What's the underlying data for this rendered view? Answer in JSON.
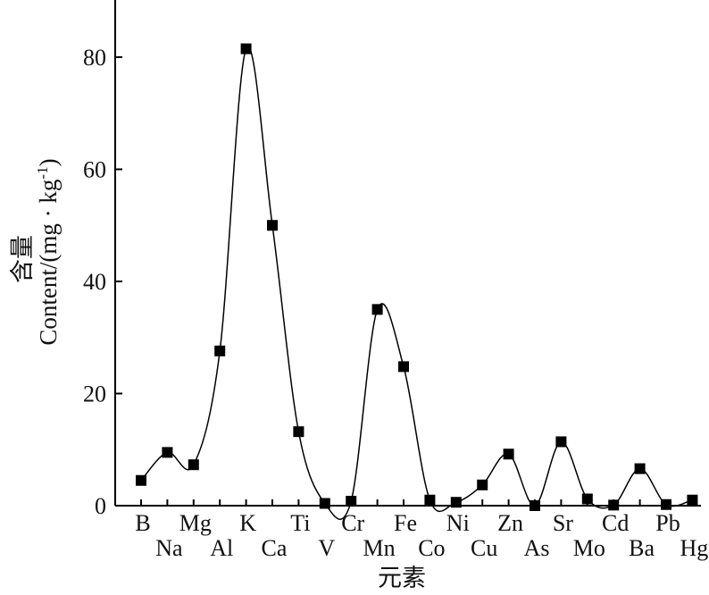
{
  "chart_data": {
    "type": "line",
    "categories": [
      "B",
      "Na",
      "Mg",
      "Al",
      "K",
      "Ca",
      "Ti",
      "V",
      "Cr",
      "Mn",
      "Fe",
      "Co",
      "Ni",
      "Cu",
      "Zn",
      "As",
      "Sr",
      "Mo",
      "Cd",
      "Ba",
      "Pb",
      "Hg"
    ],
    "values": [
      4.5,
      9.5,
      7.3,
      27.6,
      81.5,
      50.0,
      13.2,
      0.4,
      0.8,
      35.0,
      24.8,
      1.0,
      0.6,
      3.7,
      9.2,
      0.0,
      11.4,
      1.2,
      0.1,
      6.6,
      0.2,
      1.0
    ],
    "ylim": [
      0,
      90
    ],
    "yticks": [
      0,
      20,
      40,
      60,
      80
    ],
    "ylabel": "含量",
    "ylabel_en": "Content/(mg · kg",
    "ylabel_en_sup": "-1",
    "ylabel_en_tail": ")",
    "xlabel": "元素",
    "marker": "square",
    "line_style": "smooth spline",
    "line_color": "#000000",
    "marker_color": "#000000",
    "grid": false,
    "legend": "none"
  }
}
